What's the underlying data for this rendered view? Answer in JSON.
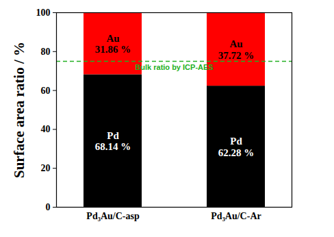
{
  "chart_data": {
    "type": "bar",
    "stacked": true,
    "y_label": "Surface area ratio / %",
    "categories": [
      "Pd₃Au/C-asp",
      "Pd₃Au/C-Ar"
    ],
    "series": [
      {
        "name": "Pd",
        "color": "#000000",
        "values": [
          68.14,
          62.28
        ],
        "value_labels": [
          "68.14 %",
          "62.28 %"
        ]
      },
      {
        "name": "Au",
        "color": "#ff0000",
        "values": [
          31.86,
          37.72
        ],
        "value_labels": [
          "31.86 %",
          "37.72 %"
        ]
      }
    ],
    "data_labels": true,
    "ylim": [
      0,
      100
    ],
    "yticks": [
      0,
      20,
      40,
      60,
      80,
      100
    ],
    "annotations": [
      {
        "text": "Bulk ratio by ICP-AES",
        "y": 75,
        "color": "#22b022",
        "line_style": "dashed"
      }
    ]
  }
}
